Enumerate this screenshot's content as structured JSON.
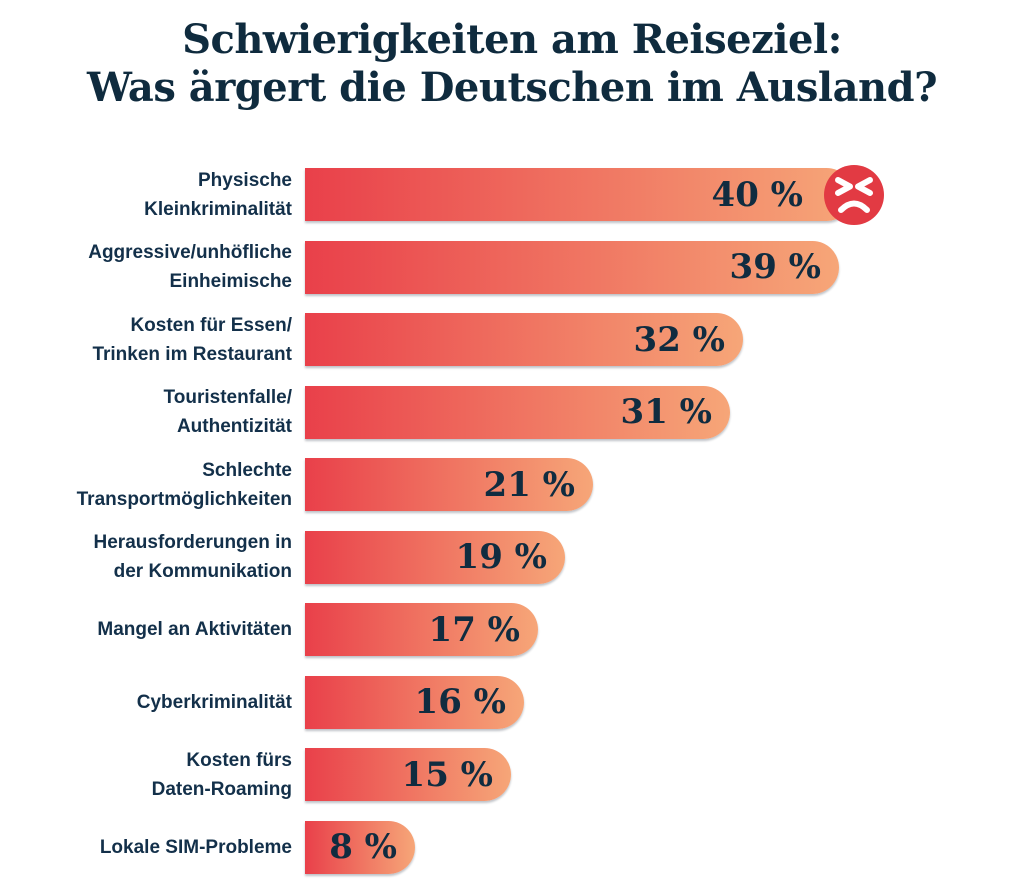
{
  "title": {
    "line1": "Schwierigkeiten am Reiseziel:",
    "line2": "Was ärgert die Deutschen im Ausland?"
  },
  "chart_data": {
    "type": "bar",
    "orientation": "horizontal",
    "title": "Schwierigkeiten am Reiseziel: Was ärgert die Deutschen im Ausland?",
    "unit": "%",
    "categories": [
      "Physische Kleinkriminalität",
      "Aggressive/unhöfliche Einheimische",
      "Kosten für Essen/ Trinken im Restaurant",
      "Touristenfalle/ Authentizität",
      "Schlechte Transportmöglichkeiten",
      "Herausforderungen in der Kommunikation",
      "Mangel an Aktivitäten",
      "Cyberkriminalität",
      "Kosten fürs Daten-Roaming",
      "Lokale SIM-Probleme"
    ],
    "category_lines": [
      [
        "Physische",
        "Kleinkriminalität"
      ],
      [
        "Aggressive/unhöfliche",
        "Einheimische"
      ],
      [
        "Kosten für Essen/",
        "Trinken im Restaurant"
      ],
      [
        "Touristenfalle/",
        "Authentizität"
      ],
      [
        "Schlechte",
        "Transportmöglichkeiten"
      ],
      [
        "Herausforderungen in",
        "der Kommunikation"
      ],
      [
        "Mangel an Aktivitäten"
      ],
      [
        "Cyberkriminalität"
      ],
      [
        "Kosten fürs",
        "Daten-Roaming"
      ],
      [
        "Lokale SIM-Probleme"
      ]
    ],
    "values": [
      40,
      39,
      32,
      31,
      21,
      19,
      17,
      16,
      15,
      8
    ],
    "value_labels": [
      "40 %",
      "39 %",
      "32 %",
      "31 %",
      "21 %",
      "19 %",
      "17 %",
      "16 %",
      "15 %",
      "8 %"
    ],
    "xlim": [
      0,
      42
    ],
    "grid": false,
    "legend": false,
    "annotations": [
      {
        "bar_index": 0,
        "icon": "angry-face-icon",
        "description": "red angry face emoji at end of top bar"
      }
    ]
  },
  "colors": {
    "background": "#ffffff",
    "title_text": "#0f2b3e",
    "label_text": "#13304a",
    "value_text": "#102c40",
    "bar_gradient_left": "#e9404a",
    "bar_gradient_right": "#f6a678",
    "emoji_red": "#e23a43",
    "emoji_features": "#ffffff"
  }
}
